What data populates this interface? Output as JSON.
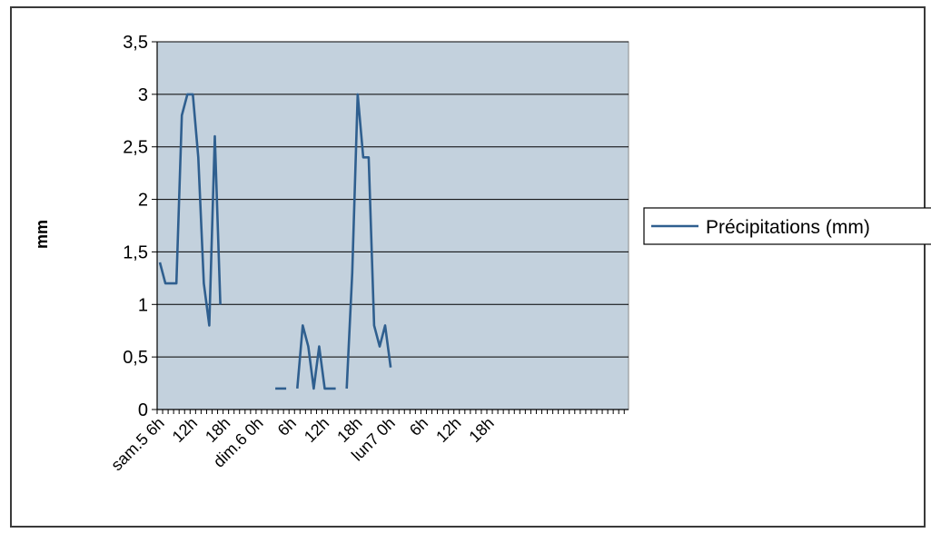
{
  "chart_data": {
    "type": "line",
    "ylabel": "mm",
    "ylim": [
      0,
      3.5
    ],
    "y_ticks": [
      "0",
      "0,5",
      "1",
      "1,5",
      "2",
      "2,5",
      "3",
      "3,5"
    ],
    "x_tick_labels": [
      "sam.5 6h",
      "12h",
      "18h",
      "dim.6 0h",
      "6h",
      "12h",
      "18h",
      "lun7 0h",
      "6h",
      "12h",
      "18h"
    ],
    "x_hours_per_label": 6,
    "x_start": "sam.5 6h",
    "grid": true,
    "legend_position": "right",
    "colors": {
      "series": "#2f5f8f",
      "plot_background": "#c3d1dd",
      "gridline": "#000000"
    },
    "series": [
      {
        "name": "Précipitations (mm)",
        "segments": [
          [
            [
              0,
              1.4
            ],
            [
              1,
              1.2
            ],
            [
              2,
              1.2
            ],
            [
              3,
              1.2
            ],
            [
              4,
              2.8
            ],
            [
              5,
              3.0
            ],
            [
              6,
              3.0
            ],
            [
              7,
              2.4
            ],
            [
              8,
              1.2
            ],
            [
              9,
              0.8
            ],
            [
              10,
              2.6
            ],
            [
              11,
              1.0
            ]
          ],
          [
            [
              21,
              0.2
            ],
            [
              22,
              0.2
            ],
            [
              23,
              0.2
            ]
          ],
          [
            [
              25,
              0.2
            ],
            [
              26,
              0.8
            ],
            [
              27,
              0.6
            ],
            [
              28,
              0.2
            ],
            [
              29,
              0.6
            ],
            [
              30,
              0.2
            ],
            [
              31,
              0.2
            ],
            [
              32,
              0.2
            ]
          ],
          [
            [
              34,
              0.2
            ],
            [
              35,
              1.3
            ],
            [
              36,
              3.0
            ],
            [
              37,
              2.4
            ],
            [
              38,
              2.4
            ],
            [
              39,
              0.8
            ],
            [
              40,
              0.6
            ],
            [
              41,
              0.8
            ],
            [
              42,
              0.4
            ]
          ]
        ]
      }
    ]
  }
}
